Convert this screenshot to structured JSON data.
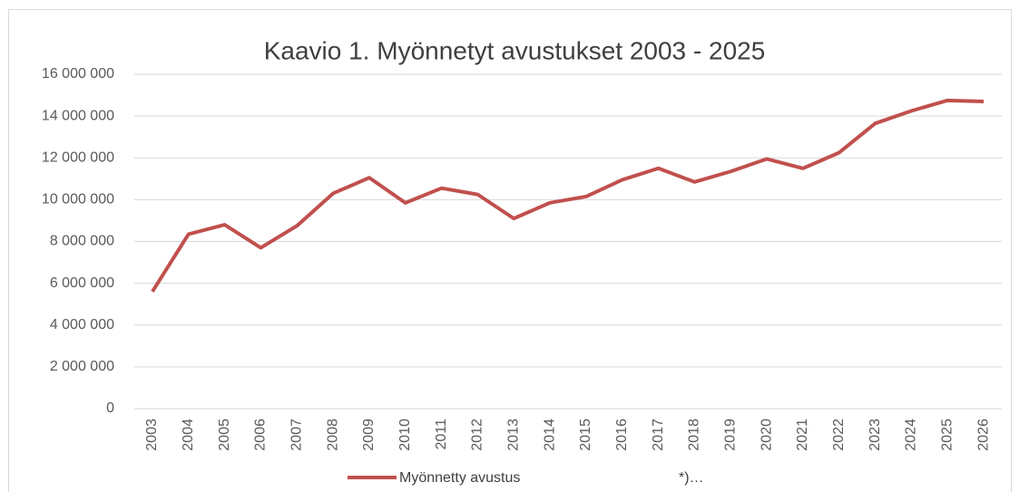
{
  "chart_data": {
    "type": "line",
    "title": "Kaavio 1. Myönnetyt avustukset 2003 - 2025",
    "categories": [
      "2003",
      "2004",
      "2005",
      "2006",
      "2007",
      "2008",
      "2009",
      "2010",
      "2011",
      "2012",
      "2013",
      "2014",
      "2015",
      "2016",
      "2017",
      "2018",
      "2019",
      "2020",
      "2021",
      "2022",
      "2023",
      "2024",
      "2025",
      "2026"
    ],
    "series": [
      {
        "name": "Myönnetty avustus",
        "color": "#c0504d",
        "values": [
          5600000,
          8350000,
          8800000,
          7700000,
          8750000,
          10300000,
          11050000,
          9850000,
          10550000,
          10250000,
          9100000,
          9850000,
          10150000,
          10950000,
          11500000,
          10850000,
          11350000,
          11950000,
          11500000,
          12250000,
          13650000,
          14250000,
          14750000,
          14700000
        ]
      }
    ],
    "legend_extra": "*)…",
    "ylim": [
      0,
      16000000
    ],
    "yticks": [
      0,
      {
        "value": 2000000,
        "label": "2 000 000"
      },
      {
        "value": 4000000,
        "label": "4 000 000"
      },
      {
        "value": 6000000,
        "label": "6 000 000"
      },
      {
        "value": 8000000,
        "label": "8 000 000"
      },
      {
        "value": 10000000,
        "label": "10 000 000"
      },
      {
        "value": 12000000,
        "label": "12 000 000"
      },
      {
        "value": 14000000,
        "label": "14 000 000"
      },
      {
        "value": 16000000,
        "label": "16 000 000"
      }
    ],
    "grid": true,
    "legend": "bottom"
  }
}
